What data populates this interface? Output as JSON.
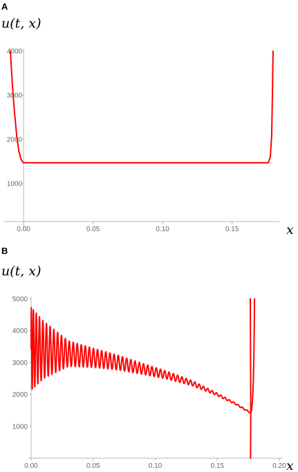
{
  "colors": {
    "curve": "#ff0000",
    "axis": "#b5b5b5",
    "tick_text": "#666666"
  },
  "chart_data": [
    {
      "panel": "A",
      "type": "line",
      "ylabel": "u(t, x)",
      "xlabel": "x",
      "xlim": [
        -0.012,
        0.182
      ],
      "ylim": [
        0,
        4000
      ],
      "x_ticks": [
        0.0,
        0.05,
        0.1,
        0.15
      ],
      "x_tick_labels": [
        "0.00",
        "0.05",
        "0.10",
        "0.15"
      ],
      "y_ticks": [
        1000,
        2000,
        3000,
        4000
      ],
      "y_tick_labels": [
        "1000",
        "2000",
        "3000",
        "4000"
      ],
      "series": [
        {
          "color": "#ff0000",
          "x": [
            -0.0095,
            -0.008,
            -0.0065,
            -0.005,
            -0.0035,
            -0.002,
            -0.0005,
            0.0,
            0.005,
            0.05,
            0.1,
            0.15,
            0.176,
            0.1775,
            0.1785,
            0.179,
            0.1795
          ],
          "y": [
            4000,
            3200,
            2600,
            2100,
            1750,
            1560,
            1480,
            1470,
            1470,
            1470,
            1470,
            1470,
            1470,
            1600,
            2100,
            3000,
            4000
          ]
        }
      ]
    },
    {
      "panel": "B",
      "type": "line",
      "ylabel": "u(t, x)",
      "xlabel": "x",
      "xlim": [
        0.0,
        0.2
      ],
      "ylim": [
        0,
        5000
      ],
      "x_ticks": [
        0.0,
        0.05,
        0.1,
        0.15,
        0.2
      ],
      "x_tick_labels": [
        "0.00",
        "0.05",
        "0.10",
        "0.15",
        "0.20"
      ],
      "y_ticks": [
        1000,
        2000,
        3000,
        4000,
        5000
      ],
      "y_tick_labels": [
        "1000",
        "2000",
        "3000",
        "4000",
        "5000"
      ],
      "series": [
        {
          "color": "#ff0000",
          "x": [
            0.0,
            0.01,
            0.03,
            0.05,
            0.07,
            0.09,
            0.11,
            0.13,
            0.15,
            0.165,
            0.177
          ],
          "y": [
            3430,
            3400,
            3280,
            3150,
            3000,
            2800,
            2600,
            2350,
            2000,
            1700,
            1420
          ],
          "oscillation_amplitude": [
            1300,
            900,
            400,
            300,
            230,
            170,
            120,
            80,
            40,
            25,
            15
          ]
        }
      ]
    }
  ]
}
